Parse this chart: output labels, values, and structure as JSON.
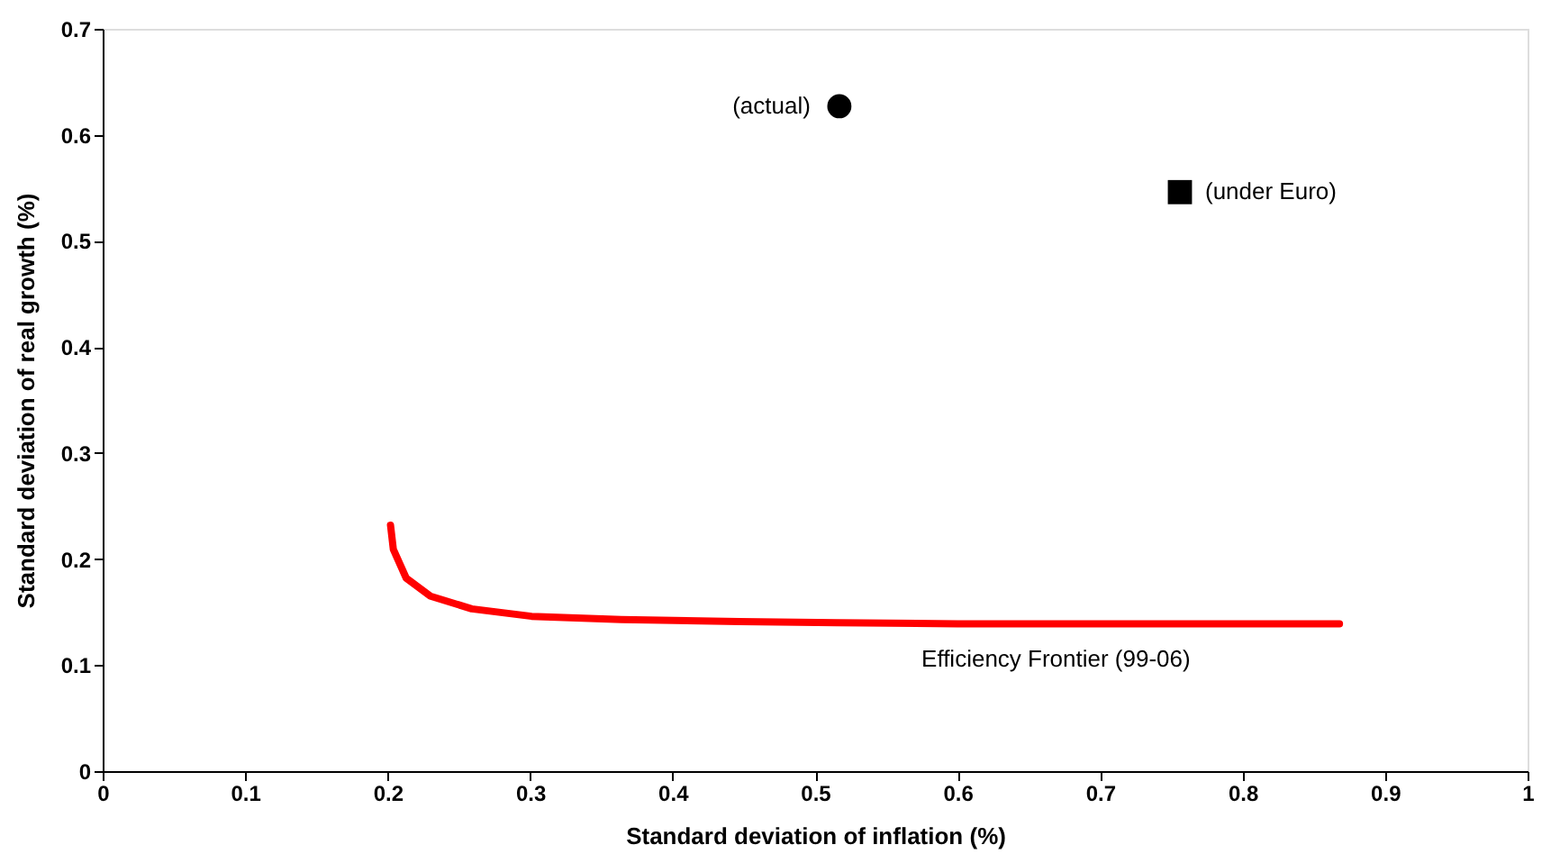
{
  "chart_data": {
    "type": "line",
    "xlabel": "Standard deviation of inflation (%)",
    "ylabel": "Standard deviation of real growth (%)",
    "xlim": [
      0,
      1
    ],
    "xticks": [
      0,
      0.1,
      0.2,
      0.3,
      0.4,
      0.5,
      0.6,
      0.7,
      0.8,
      0.9,
      1
    ],
    "ylim": [
      0,
      0.7
    ],
    "yticks": [
      0,
      0.1,
      0.2,
      0.3,
      0.4,
      0.5,
      0.6,
      0.7
    ],
    "grid": false,
    "series": [
      {
        "color": "#ff0000",
        "marker": "none",
        "line_style": "solid",
        "x": [
          0.202,
          0.204,
          0.213,
          0.23,
          0.259,
          0.301,
          0.364,
          0.447,
          0.515,
          0.6,
          0.7,
          0.868
        ],
        "values": [
          0.232,
          0.209,
          0.182,
          0.165,
          0.153,
          0.146,
          0.143,
          0.141,
          0.14,
          0.139,
          0.139,
          0.139
        ]
      },
      {
        "type": "scatter",
        "color": "#000000",
        "marker": "circle",
        "x": [
          0.517
        ],
        "values": [
          0.627
        ]
      },
      {
        "type": "scatter",
        "color": "#000000",
        "marker": "square",
        "x": [
          0.756
        ],
        "values": [
          0.546
        ]
      }
    ],
    "annotations": [
      {
        "text": "(actual)",
        "x": 0.517,
        "y": 0.627
      },
      {
        "text": "(under Euro)",
        "x": 0.756,
        "y": 0.546
      },
      {
        "text": "Efficiency Frontier  (99-06)",
        "x": 0.669,
        "y": 0.139
      }
    ]
  }
}
